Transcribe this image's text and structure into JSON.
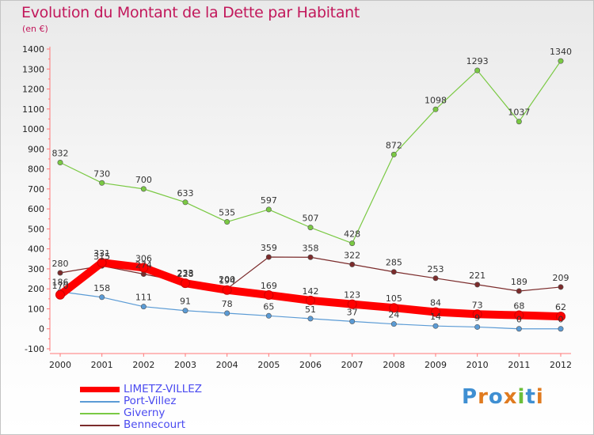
{
  "title": "Evolution du Montant de la Dette par Habitant",
  "subtitle": "(en €)",
  "chart_data": {
    "type": "line",
    "x": [
      2000,
      2001,
      2002,
      2003,
      2004,
      2005,
      2006,
      2007,
      2008,
      2009,
      2010,
      2011,
      2012
    ],
    "ylim": [
      -100,
      1400
    ],
    "yticks": [
      -100,
      0,
      100,
      200,
      300,
      400,
      500,
      600,
      700,
      800,
      900,
      1000,
      1100,
      1200,
      1300,
      1400
    ],
    "grid": false,
    "legend_position": "bottom-left",
    "series": [
      {
        "name": "LIMETZ-VILLEZ",
        "color": "#ff0000",
        "values": [
          170,
          331,
          306,
          228,
          194,
          169,
          142,
          123,
          105,
          84,
          73,
          68,
          62
        ],
        "labels": [
          "170",
          "331",
          "306",
          "228",
          "194",
          "169",
          "142",
          "123",
          "105",
          "84",
          "73",
          "68",
          "62"
        ]
      },
      {
        "name": "Port-Villez",
        "color": "#5b9bd5",
        "values": [
          186,
          158,
          111,
          91,
          78,
          65,
          51,
          37,
          24,
          14,
          9,
          0,
          0
        ],
        "labels": [
          "186",
          "158",
          "111",
          "91",
          "78",
          "65",
          "51",
          "37",
          "24",
          "14",
          "9",
          "0",
          "0"
        ]
      },
      {
        "name": "Giverny",
        "color": "#7ac943",
        "values": [
          832,
          730,
          700,
          633,
          535,
          597,
          507,
          428,
          872,
          1098,
          1293,
          1037,
          1340
        ],
        "labels": [
          "832",
          "730",
          "700",
          "633",
          "535",
          "597",
          "507",
          "428",
          "872",
          "1098",
          "1293",
          "1037",
          "1340"
        ]
      },
      {
        "name": "Bennecourt",
        "color": "#7b2b2b",
        "values": [
          280,
          315,
          274,
          233,
          200,
          359,
          358,
          322,
          285,
          253,
          221,
          189,
          209
        ],
        "labels": [
          "280",
          "315",
          "274",
          "233",
          "200",
          "359",
          "358",
          "322",
          "285",
          "253",
          "221",
          "189",
          "209"
        ]
      }
    ]
  },
  "legend": [
    {
      "label": "LIMETZ-VILLEZ",
      "color": "#ff0000",
      "text_color": "#4a4af0"
    },
    {
      "label": "Port-Villez",
      "color": "#5b9bd5",
      "text_color": "#4a4af0"
    },
    {
      "label": "Giverny",
      "color": "#7ac943",
      "text_color": "#4a4af0"
    },
    {
      "label": "Bennecourt",
      "color": "#7b2b2b",
      "text_color": "#4a4af0"
    }
  ],
  "logo": {
    "text": "Proxiti",
    "letters": [
      {
        "ch": "P",
        "color": "#3f8fd2"
      },
      {
        "ch": "r",
        "color": "#e07b20"
      },
      {
        "ch": "o",
        "color": "#3f8fd2"
      },
      {
        "ch": "x",
        "color": "#e07b20"
      },
      {
        "ch": "i",
        "color": "#6cbf3b"
      },
      {
        "ch": "t",
        "color": "#3f8fd2"
      },
      {
        "ch": "i",
        "color": "#e07b20"
      }
    ]
  }
}
